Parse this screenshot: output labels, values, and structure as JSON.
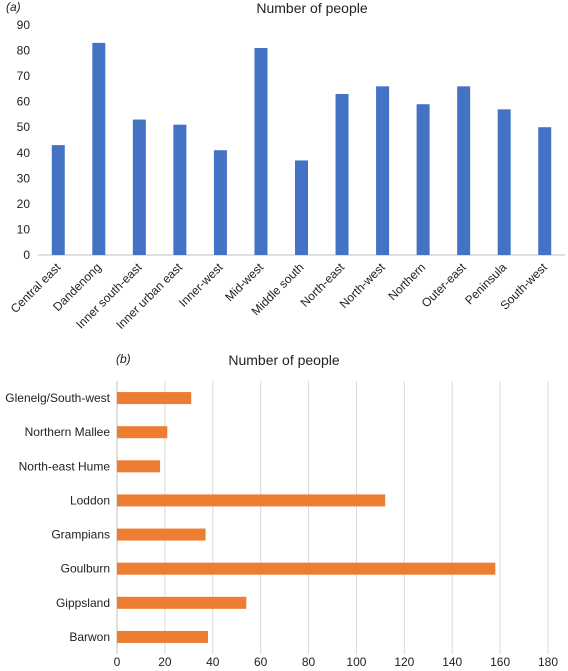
{
  "chart_data": [
    {
      "type": "bar",
      "panel_label": "(a)",
      "title": "Number of people",
      "categories": [
        "Central east",
        "Dandenong",
        "Inner south-east",
        "Inner urban east",
        "Inner-west",
        "Mid-west",
        "Middle south",
        "North-east",
        "North-west",
        "Northern",
        "Outer-east",
        "Peninsula",
        "South-west"
      ],
      "values": [
        43,
        83,
        53,
        51,
        41,
        81,
        37,
        63,
        66,
        59,
        66,
        57,
        50
      ],
      "ylim": [
        0,
        90
      ],
      "yticks": [
        0,
        10,
        20,
        30,
        40,
        50,
        60,
        70,
        80,
        90
      ],
      "color": "#4472C4",
      "grid": false
    },
    {
      "type": "bar",
      "orientation": "horizontal",
      "panel_label": "(b)",
      "title": "Number of people",
      "categories": [
        "Glenelg/South-west",
        "Northern Mallee",
        "North-east Hume",
        "Loddon",
        "Grampians",
        "Goulburn",
        "Gippsland",
        "Barwon"
      ],
      "values": [
        31,
        21,
        18,
        112,
        37,
        158,
        54,
        38
      ],
      "xlim": [
        0,
        180
      ],
      "xticks": [
        0,
        20,
        40,
        60,
        80,
        100,
        120,
        140,
        160,
        180
      ],
      "color": "#ED7D31",
      "grid": true
    }
  ]
}
